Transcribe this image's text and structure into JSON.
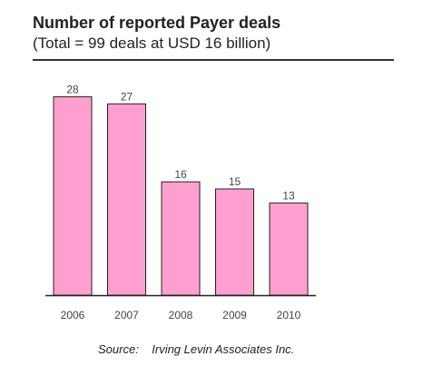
{
  "chart_data": {
    "type": "bar",
    "title": "Number of reported Payer deals",
    "subtitle": "(Total = 99 deals at USD 16 billion)",
    "categories": [
      "2006",
      "2007",
      "2008",
      "2009",
      "2010"
    ],
    "values": [
      28,
      27,
      16,
      15,
      13
    ],
    "xlabel": "",
    "ylabel": "",
    "ylim": [
      0,
      30
    ],
    "grid": false,
    "legend": "none",
    "bar_color": "#ff9fd0",
    "bar_edge_color": "#222222"
  },
  "source": "Source:    Irving Levin Associates Inc."
}
